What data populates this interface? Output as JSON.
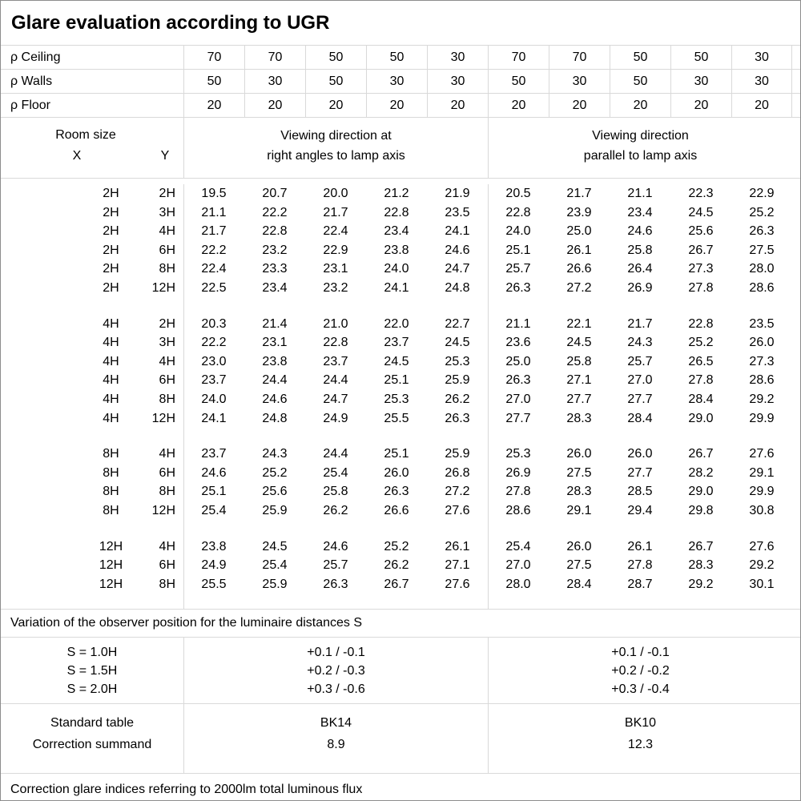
{
  "title": "Glare evaluation according to UGR",
  "colors": {
    "background": "#ffffff",
    "text": "#000000",
    "grid": "#d9d9d9",
    "outer_border": "#8c8c8c"
  },
  "reflectance_rows": [
    {
      "label": "ρ Ceiling",
      "values": [
        "70",
        "70",
        "50",
        "50",
        "30",
        "70",
        "70",
        "50",
        "50",
        "30"
      ]
    },
    {
      "label": "ρ Walls",
      "values": [
        "50",
        "30",
        "50",
        "30",
        "30",
        "50",
        "30",
        "50",
        "30",
        "30"
      ]
    },
    {
      "label": "ρ Floor",
      "values": [
        "20",
        "20",
        "20",
        "20",
        "20",
        "20",
        "20",
        "20",
        "20",
        "20"
      ]
    }
  ],
  "room_header": {
    "label": "Room size",
    "x": "X",
    "y": "Y"
  },
  "group_headers": {
    "right_angles": [
      "Viewing direction at",
      "right angles to lamp axis"
    ],
    "parallel": [
      "Viewing direction",
      "parallel to lamp axis"
    ]
  },
  "ugr_blocks": [
    {
      "rows": [
        {
          "x": "2H",
          "y": "2H",
          "values": [
            "19.5",
            "20.7",
            "20.0",
            "21.2",
            "21.9",
            "20.5",
            "21.7",
            "21.1",
            "22.3",
            "22.9"
          ]
        },
        {
          "x": "2H",
          "y": "3H",
          "values": [
            "21.1",
            "22.2",
            "21.7",
            "22.8",
            "23.5",
            "22.8",
            "23.9",
            "23.4",
            "24.5",
            "25.2"
          ]
        },
        {
          "x": "2H",
          "y": "4H",
          "values": [
            "21.7",
            "22.8",
            "22.4",
            "23.4",
            "24.1",
            "24.0",
            "25.0",
            "24.6",
            "25.6",
            "26.3"
          ]
        },
        {
          "x": "2H",
          "y": "6H",
          "values": [
            "22.2",
            "23.2",
            "22.9",
            "23.8",
            "24.6",
            "25.1",
            "26.1",
            "25.8",
            "26.7",
            "27.5"
          ]
        },
        {
          "x": "2H",
          "y": "8H",
          "values": [
            "22.4",
            "23.3",
            "23.1",
            "24.0",
            "24.7",
            "25.7",
            "26.6",
            "26.4",
            "27.3",
            "28.0"
          ]
        },
        {
          "x": "2H",
          "y": "12H",
          "values": [
            "22.5",
            "23.4",
            "23.2",
            "24.1",
            "24.8",
            "26.3",
            "27.2",
            "26.9",
            "27.8",
            "28.6"
          ]
        }
      ]
    },
    {
      "rows": [
        {
          "x": "4H",
          "y": "2H",
          "values": [
            "20.3",
            "21.4",
            "21.0",
            "22.0",
            "22.7",
            "21.1",
            "22.1",
            "21.7",
            "22.8",
            "23.5"
          ]
        },
        {
          "x": "4H",
          "y": "3H",
          "values": [
            "22.2",
            "23.1",
            "22.8",
            "23.7",
            "24.5",
            "23.6",
            "24.5",
            "24.3",
            "25.2",
            "26.0"
          ]
        },
        {
          "x": "4H",
          "y": "4H",
          "values": [
            "23.0",
            "23.8",
            "23.7",
            "24.5",
            "25.3",
            "25.0",
            "25.8",
            "25.7",
            "26.5",
            "27.3"
          ]
        },
        {
          "x": "4H",
          "y": "6H",
          "values": [
            "23.7",
            "24.4",
            "24.4",
            "25.1",
            "25.9",
            "26.3",
            "27.1",
            "27.0",
            "27.8",
            "28.6"
          ]
        },
        {
          "x": "4H",
          "y": "8H",
          "values": [
            "24.0",
            "24.6",
            "24.7",
            "25.3",
            "26.2",
            "27.0",
            "27.7",
            "27.7",
            "28.4",
            "29.2"
          ]
        },
        {
          "x": "4H",
          "y": "12H",
          "values": [
            "24.1",
            "24.8",
            "24.9",
            "25.5",
            "26.3",
            "27.7",
            "28.3",
            "28.4",
            "29.0",
            "29.9"
          ]
        }
      ]
    },
    {
      "rows": [
        {
          "x": "8H",
          "y": "4H",
          "values": [
            "23.7",
            "24.3",
            "24.4",
            "25.1",
            "25.9",
            "25.3",
            "26.0",
            "26.0",
            "26.7",
            "27.6"
          ]
        },
        {
          "x": "8H",
          "y": "6H",
          "values": [
            "24.6",
            "25.2",
            "25.4",
            "26.0",
            "26.8",
            "26.9",
            "27.5",
            "27.7",
            "28.2",
            "29.1"
          ]
        },
        {
          "x": "8H",
          "y": "8H",
          "values": [
            "25.1",
            "25.6",
            "25.8",
            "26.3",
            "27.2",
            "27.8",
            "28.3",
            "28.5",
            "29.0",
            "29.9"
          ]
        },
        {
          "x": "8H",
          "y": "12H",
          "values": [
            "25.4",
            "25.9",
            "26.2",
            "26.6",
            "27.6",
            "28.6",
            "29.1",
            "29.4",
            "29.8",
            "30.8"
          ]
        }
      ]
    },
    {
      "rows": [
        {
          "x": "12H",
          "y": "4H",
          "values": [
            "23.8",
            "24.5",
            "24.6",
            "25.2",
            "26.1",
            "25.4",
            "26.0",
            "26.1",
            "26.7",
            "27.6"
          ]
        },
        {
          "x": "12H",
          "y": "6H",
          "values": [
            "24.9",
            "25.4",
            "25.7",
            "26.2",
            "27.1",
            "27.0",
            "27.5",
            "27.8",
            "28.3",
            "29.2"
          ]
        },
        {
          "x": "12H",
          "y": "8H",
          "values": [
            "25.5",
            "25.9",
            "26.3",
            "26.7",
            "27.6",
            "28.0",
            "28.4",
            "28.7",
            "29.2",
            "30.1"
          ]
        }
      ]
    }
  ],
  "variation_note": "Variation of the observer position for the luminaire distances S",
  "s_variation": {
    "labels": [
      "S = 1.0H",
      "S = 1.5H",
      "S = 2.0H"
    ],
    "right_angles": [
      "+0.1 / -0.1",
      "+0.2 / -0.3",
      "+0.3 / -0.6"
    ],
    "parallel": [
      "+0.1 / -0.1",
      "+0.2 / -0.2",
      "+0.3 / -0.4"
    ]
  },
  "summary": {
    "standard_table_label": "Standard table",
    "correction_summand_label": "Correction summand",
    "right_angles": {
      "standard_table": "BK14",
      "correction_summand": "8.9"
    },
    "parallel": {
      "standard_table": "BK10",
      "correction_summand": "12.3"
    }
  },
  "footer_note": "Correction glare indices referring to 2000lm total luminous flux"
}
